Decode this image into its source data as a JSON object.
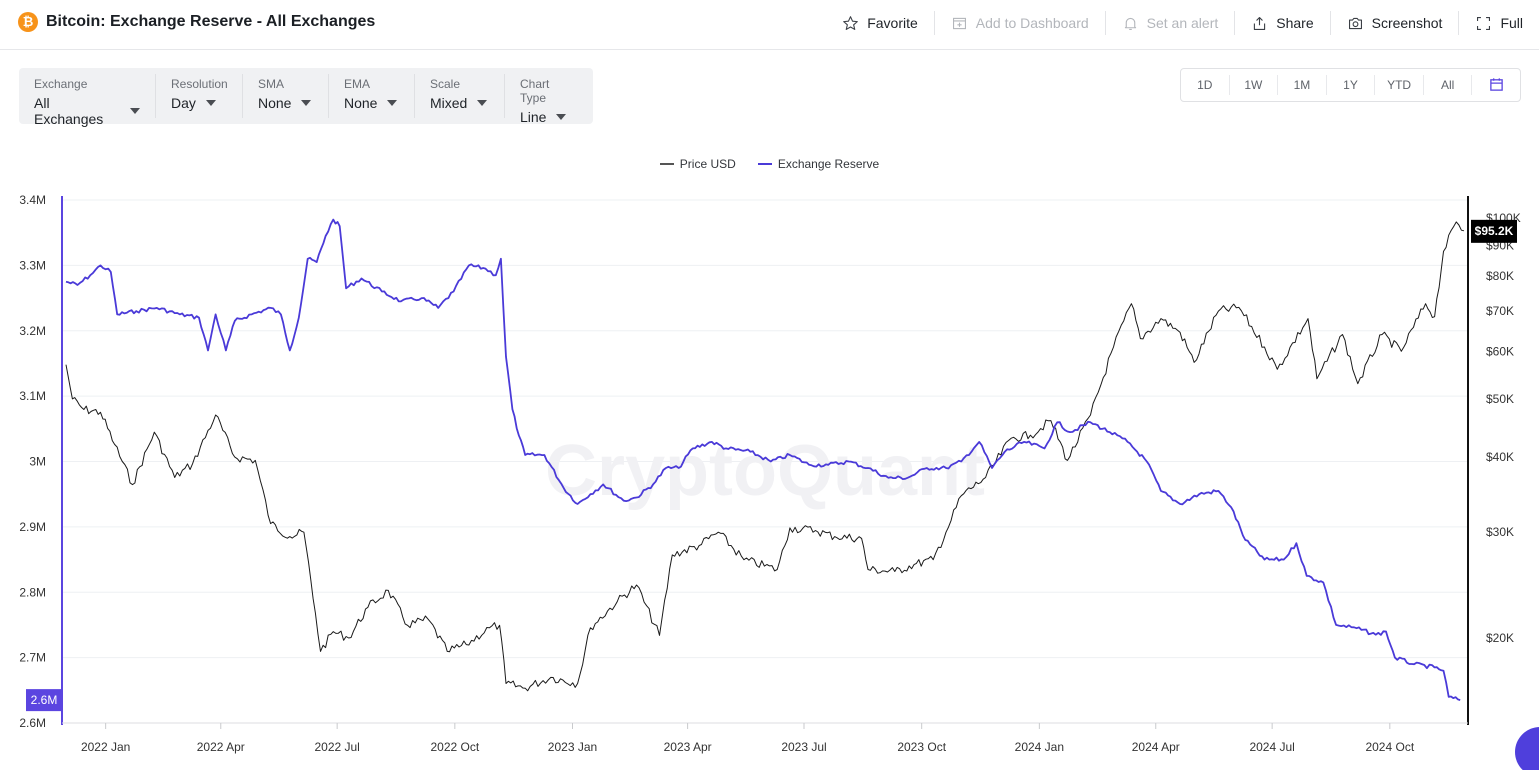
{
  "header": {
    "title": "Bitcoin: Exchange Reserve - All Exchanges",
    "btc_symbol": "₿",
    "actions": [
      {
        "label": "Favorite",
        "icon": "star-icon",
        "disabled": false
      },
      {
        "label": "Add to Dashboard",
        "icon": "dashboard-add-icon",
        "disabled": true
      },
      {
        "label": "Set an alert",
        "icon": "bell-icon",
        "disabled": true
      },
      {
        "label": "Share",
        "icon": "share-icon",
        "disabled": false
      },
      {
        "label": "Screenshot",
        "icon": "camera-icon",
        "disabled": false
      },
      {
        "label": "Full",
        "icon": "fullscreen-icon",
        "disabled": false
      }
    ]
  },
  "controls": [
    {
      "label": "Exchange",
      "value": "All Exchanges"
    },
    {
      "label": "Resolution",
      "value": "Day"
    },
    {
      "label": "SMA",
      "value": "None"
    },
    {
      "label": "EMA",
      "value": "None"
    },
    {
      "label": "Scale",
      "value": "Mixed"
    },
    {
      "label": "Chart Type",
      "value": "Line"
    }
  ],
  "ranges": [
    "1D",
    "1W",
    "1M",
    "1Y",
    "YTD",
    "All"
  ],
  "colors": {
    "reserve": "#4a3ad8",
    "price": "#1a1a1a",
    "accent": "#5b45e0",
    "grid": "#eef0f3"
  },
  "chart_data": {
    "type": "line",
    "watermark": "CryptoQuant",
    "legend": [
      "Price USD",
      "Exchange Reserve"
    ],
    "x_ticks": [
      "2022 Jan",
      "2022 Apr",
      "2022 Jul",
      "2022 Oct",
      "2023 Jan",
      "2023 Apr",
      "2023 Jul",
      "2023 Oct",
      "2024 Jan",
      "2024 Apr",
      "2024 Jul",
      "2024 Oct"
    ],
    "x_range": [
      "2021-12-01",
      "2024-11-28"
    ],
    "left_axis": {
      "ticks": [
        "3.4M",
        "3.3M",
        "3.2M",
        "3.1M",
        "3M",
        "2.9M",
        "2.8M",
        "2.7M",
        "2.6M"
      ],
      "ylim": [
        2.6,
        3.4
      ],
      "unit": "M"
    },
    "right_axis": {
      "ticks": [
        "$100K",
        "$90K",
        "$80K",
        "$70K",
        "$60K",
        "$50K",
        "$40K",
        "$30K",
        "$20K"
      ],
      "scale": "log"
    },
    "current_reserve_label": "2.6M",
    "current_price_label": "$95.2K",
    "series": [
      {
        "name": "Exchange Reserve",
        "axis": "left",
        "points": [
          [
            "2021-12-01",
            3.275
          ],
          [
            "2021-12-10",
            3.27
          ],
          [
            "2021-12-20",
            3.285
          ],
          [
            "2021-12-28",
            3.3
          ],
          [
            "2022-01-05",
            3.29
          ],
          [
            "2022-01-10",
            3.225
          ],
          [
            "2022-01-25",
            3.23
          ],
          [
            "2022-02-10",
            3.235
          ],
          [
            "2022-02-28",
            3.225
          ],
          [
            "2022-03-15",
            3.22
          ],
          [
            "2022-03-22",
            3.17
          ],
          [
            "2022-03-28",
            3.225
          ],
          [
            "2022-04-05",
            3.17
          ],
          [
            "2022-04-12",
            3.215
          ],
          [
            "2022-04-25",
            3.225
          ],
          [
            "2022-05-10",
            3.235
          ],
          [
            "2022-05-18",
            3.225
          ],
          [
            "2022-05-25",
            3.17
          ],
          [
            "2022-06-01",
            3.22
          ],
          [
            "2022-06-08",
            3.31
          ],
          [
            "2022-06-15",
            3.305
          ],
          [
            "2022-06-22",
            3.345
          ],
          [
            "2022-06-28",
            3.37
          ],
          [
            "2022-07-03",
            3.36
          ],
          [
            "2022-07-08",
            3.265
          ],
          [
            "2022-07-20",
            3.28
          ],
          [
            "2022-08-05",
            3.26
          ],
          [
            "2022-08-20",
            3.245
          ],
          [
            "2022-09-05",
            3.25
          ],
          [
            "2022-09-18",
            3.235
          ],
          [
            "2022-09-30",
            3.26
          ],
          [
            "2022-10-12",
            3.3
          ],
          [
            "2022-10-25",
            3.295
          ],
          [
            "2022-11-02",
            3.285
          ],
          [
            "2022-11-06",
            3.31
          ],
          [
            "2022-11-10",
            3.16
          ],
          [
            "2022-11-15",
            3.08
          ],
          [
            "2022-11-20",
            3.04
          ],
          [
            "2022-11-25",
            3.01
          ],
          [
            "2022-12-10",
            3.01
          ],
          [
            "2022-12-25",
            2.96
          ],
          [
            "2023-01-05",
            2.935
          ],
          [
            "2023-01-15",
            2.95
          ],
          [
            "2023-01-25",
            2.965
          ],
          [
            "2023-02-10",
            2.94
          ],
          [
            "2023-02-20",
            2.945
          ],
          [
            "2023-03-05",
            2.965
          ],
          [
            "2023-03-15",
            2.99
          ],
          [
            "2023-03-25",
            2.99
          ],
          [
            "2023-04-05",
            3.02
          ],
          [
            "2023-04-20",
            3.03
          ],
          [
            "2023-05-01",
            3.02
          ],
          [
            "2023-05-20",
            3.015
          ],
          [
            "2023-06-05",
            3.0
          ],
          [
            "2023-06-20",
            3.01
          ],
          [
            "2023-07-05",
            2.995
          ],
          [
            "2023-07-20",
            2.995
          ],
          [
            "2023-08-05",
            3.0
          ],
          [
            "2023-08-20",
            2.99
          ],
          [
            "2023-09-05",
            2.975
          ],
          [
            "2023-09-20",
            2.975
          ],
          [
            "2023-10-05",
            2.99
          ],
          [
            "2023-10-20",
            2.99
          ],
          [
            "2023-11-01",
            3.0
          ],
          [
            "2023-11-15",
            3.03
          ],
          [
            "2023-11-25",
            2.99
          ],
          [
            "2023-12-05",
            3.015
          ],
          [
            "2023-12-20",
            3.03
          ],
          [
            "2024-01-05",
            3.02
          ],
          [
            "2024-01-15",
            3.06
          ],
          [
            "2024-01-25",
            3.045
          ],
          [
            "2024-02-10",
            3.06
          ],
          [
            "2024-02-25",
            3.045
          ],
          [
            "2024-03-10",
            3.03
          ],
          [
            "2024-03-25",
            3.0
          ],
          [
            "2024-04-05",
            2.955
          ],
          [
            "2024-04-20",
            2.935
          ],
          [
            "2024-05-05",
            2.95
          ],
          [
            "2024-05-20",
            2.955
          ],
          [
            "2024-05-30",
            2.93
          ],
          [
            "2024-06-10",
            2.88
          ],
          [
            "2024-06-25",
            2.85
          ],
          [
            "2024-07-10",
            2.85
          ],
          [
            "2024-07-20",
            2.875
          ],
          [
            "2024-07-28",
            2.825
          ],
          [
            "2024-08-10",
            2.815
          ],
          [
            "2024-08-20",
            2.75
          ],
          [
            "2024-09-05",
            2.745
          ],
          [
            "2024-09-20",
            2.735
          ],
          [
            "2024-09-28",
            2.74
          ],
          [
            "2024-10-05",
            2.7
          ],
          [
            "2024-10-20",
            2.69
          ],
          [
            "2024-11-05",
            2.685
          ],
          [
            "2024-11-12",
            2.68
          ],
          [
            "2024-11-16",
            2.64
          ],
          [
            "2024-11-25",
            2.635
          ]
        ]
      },
      {
        "name": "Price USD",
        "axis": "right",
        "points": [
          [
            "2021-12-01",
            57000
          ],
          [
            "2021-12-06",
            50000
          ],
          [
            "2021-12-15",
            48000
          ],
          [
            "2021-12-28",
            47500
          ],
          [
            "2022-01-08",
            42000
          ],
          [
            "2022-01-22",
            36000
          ],
          [
            "2022-02-08",
            44000
          ],
          [
            "2022-02-24",
            37000
          ],
          [
            "2022-03-10",
            39000
          ],
          [
            "2022-03-28",
            47000
          ],
          [
            "2022-04-12",
            40000
          ],
          [
            "2022-04-28",
            39500
          ],
          [
            "2022-05-10",
            31000
          ],
          [
            "2022-05-25",
            29500
          ],
          [
            "2022-06-05",
            30000
          ],
          [
            "2022-06-14",
            22000
          ],
          [
            "2022-06-18",
            19000
          ],
          [
            "2022-06-28",
            20500
          ],
          [
            "2022-07-10",
            20000
          ],
          [
            "2022-07-25",
            22500
          ],
          [
            "2022-08-10",
            24000
          ],
          [
            "2022-08-25",
            21000
          ],
          [
            "2022-09-10",
            21500
          ],
          [
            "2022-09-25",
            19000
          ],
          [
            "2022-10-10",
            19500
          ],
          [
            "2022-10-28",
            20800
          ],
          [
            "2022-11-05",
            21000
          ],
          [
            "2022-11-10",
            16800
          ],
          [
            "2022-11-25",
            16500
          ],
          [
            "2022-12-15",
            17200
          ],
          [
            "2023-01-05",
            16800
          ],
          [
            "2023-01-15",
            20800
          ],
          [
            "2023-02-05",
            23000
          ],
          [
            "2023-02-20",
            24500
          ],
          [
            "2023-03-10",
            20200
          ],
          [
            "2023-03-20",
            27500
          ],
          [
            "2023-04-10",
            28500
          ],
          [
            "2023-04-25",
            30000
          ],
          [
            "2023-05-15",
            27000
          ],
          [
            "2023-06-10",
            26000
          ],
          [
            "2023-06-20",
            30500
          ],
          [
            "2023-07-10",
            30200
          ],
          [
            "2023-07-25",
            29500
          ],
          [
            "2023-08-15",
            29300
          ],
          [
            "2023-08-20",
            26000
          ],
          [
            "2023-09-10",
            25800
          ],
          [
            "2023-09-25",
            26500
          ],
          [
            "2023-10-10",
            27000
          ],
          [
            "2023-10-20",
            30000
          ],
          [
            "2023-11-01",
            34500
          ],
          [
            "2023-11-20",
            37000
          ],
          [
            "2023-12-10",
            43000
          ],
          [
            "2023-12-25",
            43500
          ],
          [
            "2024-01-10",
            46000
          ],
          [
            "2024-01-23",
            39500
          ],
          [
            "2024-02-10",
            47000
          ],
          [
            "2024-02-28",
            61000
          ],
          [
            "2024-03-13",
            72000
          ],
          [
            "2024-03-20",
            63000
          ],
          [
            "2024-04-05",
            68000
          ],
          [
            "2024-04-20",
            64500
          ],
          [
            "2024-05-01",
            57500
          ],
          [
            "2024-05-20",
            70000
          ],
          [
            "2024-06-05",
            71000
          ],
          [
            "2024-06-25",
            61000
          ],
          [
            "2024-07-05",
            56000
          ],
          [
            "2024-07-29",
            68000
          ],
          [
            "2024-08-05",
            54000
          ],
          [
            "2024-08-25",
            64000
          ],
          [
            "2024-09-06",
            53000
          ],
          [
            "2024-09-25",
            64000
          ],
          [
            "2024-10-10",
            60000
          ],
          [
            "2024-10-29",
            72000
          ],
          [
            "2024-11-05",
            68500
          ],
          [
            "2024-11-12",
            88000
          ],
          [
            "2024-11-22",
            98500
          ],
          [
            "2024-11-28",
            95200
          ]
        ]
      }
    ]
  }
}
